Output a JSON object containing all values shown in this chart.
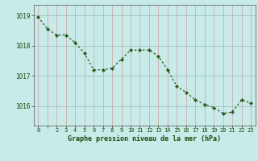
{
  "x": [
    0,
    1,
    2,
    3,
    4,
    5,
    6,
    7,
    8,
    9,
    10,
    11,
    12,
    13,
    14,
    15,
    16,
    17,
    18,
    19,
    20,
    21,
    22,
    23
  ],
  "y": [
    1018.95,
    1018.55,
    1018.35,
    1018.35,
    1018.1,
    1017.75,
    1017.2,
    1017.2,
    1017.25,
    1017.55,
    1017.85,
    1017.85,
    1017.85,
    1017.65,
    1017.2,
    1016.65,
    1016.45,
    1016.2,
    1016.05,
    1015.95,
    1015.75,
    1015.8,
    1016.2,
    1016.1
  ],
  "line_color": "#2d5a1b",
  "marker_color": "#2d5a1b",
  "bg_color": "#c8eae8",
  "grid_color": "#b8d4c8",
  "grid_color_pink": "#e8c8c8",
  "xlabel": "Graphe pression niveau de la mer (hPa)",
  "xlabel_color": "#1a4a0a",
  "yticks": [
    1016,
    1017,
    1018,
    1019
  ],
  "ylim": [
    1015.35,
    1019.35
  ],
  "xlim": [
    -0.5,
    23.5
  ]
}
